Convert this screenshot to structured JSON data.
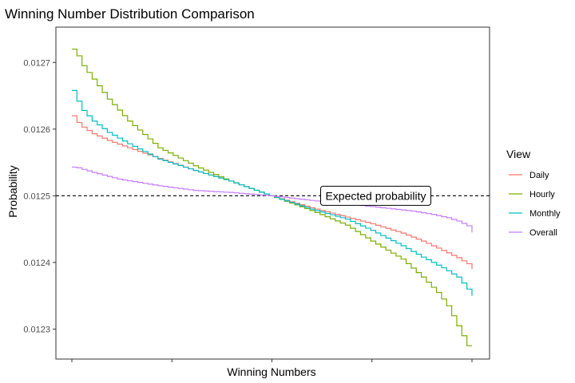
{
  "chart_data": {
    "type": "line",
    "style": "step",
    "title": "Winning Number Distribution Comparison",
    "xlabel": "Winning Numbers",
    "ylabel": "Probability",
    "xlim": [
      1,
      80
    ],
    "ylim": [
      0.012255,
      0.012753
    ],
    "yticks": [
      0.0123,
      0.0124,
      0.0125,
      0.0126,
      0.0127
    ],
    "ytick_labels": [
      "0.0123",
      "0.0124",
      "0.0125",
      "0.0126",
      "0.0127"
    ],
    "xticks_count": 5,
    "grid": false,
    "legend": {
      "title": "View",
      "position": "right"
    },
    "reference_line": {
      "y": 0.0125,
      "style": "dashed",
      "color": "#000000"
    },
    "annotation": {
      "text": "Expected probability",
      "x": 61,
      "y": 0.0125
    },
    "series": [
      {
        "name": "Daily",
        "color": "#F8766D",
        "anchors": [
          [
            1,
            0.01262
          ],
          [
            2,
            0.01261
          ],
          [
            3,
            0.012603
          ],
          [
            5,
            0.012593
          ],
          [
            8,
            0.012583
          ],
          [
            12,
            0.012572
          ],
          [
            18,
            0.012556
          ],
          [
            25,
            0.012538
          ],
          [
            32,
            0.012522
          ],
          [
            40,
            0.0125
          ],
          [
            48,
            0.012482
          ],
          [
            55,
            0.012468
          ],
          [
            60,
            0.012458
          ],
          [
            66,
            0.012444
          ],
          [
            70,
            0.012432
          ],
          [
            74,
            0.012418
          ],
          [
            77,
            0.012407
          ],
          [
            79,
            0.012398
          ],
          [
            80,
            0.01239
          ]
        ]
      },
      {
        "name": "Hourly",
        "color": "#7CAE00",
        "anchors": [
          [
            1,
            0.01272
          ],
          [
            2,
            0.01271
          ],
          [
            3,
            0.012695
          ],
          [
            5,
            0.012675
          ],
          [
            8,
            0.012645
          ],
          [
            12,
            0.012612
          ],
          [
            18,
            0.012572
          ],
          [
            25,
            0.012545
          ],
          [
            32,
            0.012522
          ],
          [
            40,
            0.0125
          ],
          [
            48,
            0.012478
          ],
          [
            55,
            0.012456
          ],
          [
            60,
            0.012432
          ],
          [
            66,
            0.012405
          ],
          [
            70,
            0.012378
          ],
          [
            73,
            0.012355
          ],
          [
            75,
            0.012335
          ],
          [
            77,
            0.012305
          ],
          [
            79,
            0.012275
          ],
          [
            80,
            0.012275
          ]
        ]
      },
      {
        "name": "Monthly",
        "color": "#00BFC4",
        "anchors": [
          [
            1,
            0.012658
          ],
          [
            2,
            0.012642
          ],
          [
            3,
            0.012628
          ],
          [
            5,
            0.012612
          ],
          [
            8,
            0.012595
          ],
          [
            12,
            0.012578
          ],
          [
            18,
            0.012555
          ],
          [
            25,
            0.012538
          ],
          [
            32,
            0.012522
          ],
          [
            40,
            0.0125
          ],
          [
            48,
            0.01248
          ],
          [
            55,
            0.012465
          ],
          [
            60,
            0.012448
          ],
          [
            66,
            0.012425
          ],
          [
            70,
            0.012408
          ],
          [
            74,
            0.012392
          ],
          [
            77,
            0.012378
          ],
          [
            79,
            0.01236
          ],
          [
            80,
            0.01235
          ]
        ]
      },
      {
        "name": "Overall",
        "color": "#C77CFF",
        "anchors": [
          [
            1,
            0.012543
          ],
          [
            2,
            0.012542
          ],
          [
            5,
            0.012535
          ],
          [
            10,
            0.012525
          ],
          [
            18,
            0.012515
          ],
          [
            25,
            0.012508
          ],
          [
            32,
            0.012505
          ],
          [
            40,
            0.0125
          ],
          [
            48,
            0.012493
          ],
          [
            55,
            0.012488
          ],
          [
            62,
            0.012482
          ],
          [
            68,
            0.012477
          ],
          [
            72,
            0.012472
          ],
          [
            75,
            0.012467
          ],
          [
            77,
            0.012462
          ],
          [
            79,
            0.012455
          ],
          [
            80,
            0.012445
          ]
        ]
      }
    ]
  }
}
